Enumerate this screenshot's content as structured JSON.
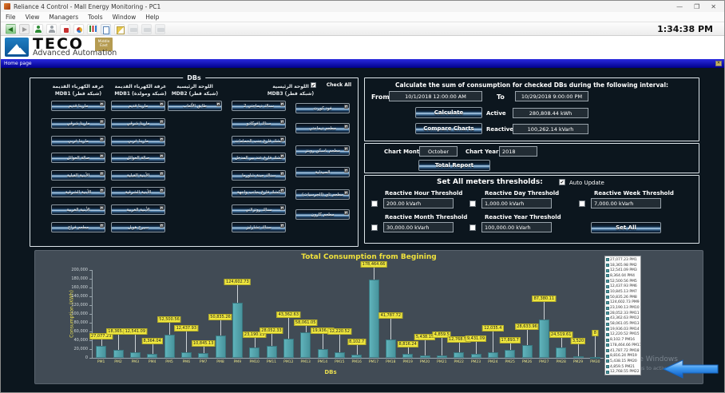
{
  "window": {
    "title": "Reliance 4 Control - Mall Energy Monitoring - PC1",
    "controls": {
      "minimize": "—",
      "maximize": "❐",
      "close": "✕"
    }
  },
  "menu": {
    "items": [
      "File",
      "View",
      "Managers",
      "Tools",
      "Window",
      "Help"
    ]
  },
  "toolbar": {
    "time": "1:34:38 PM",
    "icons": [
      "back",
      "forward",
      "user1",
      "user2",
      "docred",
      "docpie",
      "chart",
      "copy",
      "design",
      "print",
      "print",
      "print"
    ]
  },
  "brand": {
    "name": "TECO",
    "badge": "Middle East",
    "tagline": "Advanced Automation"
  },
  "nav": {
    "tab": "Home page"
  },
  "dbs": {
    "box_label": "DBs",
    "check_all_label": "Check All",
    "check_all_checked": true,
    "columns": [
      {
        "title_line1": "غرفة الكهرباء القديمة",
        "title_line2": "MDB1 (شبكة قطر)",
        "buttons": [
          "مارينا قديم",
          "مارينا شرقي",
          "مارينا غربي",
          "صالة العوائل",
          "الأبنية القبلية",
          "الأبنية الشرقية",
          "الأبنية الغربية",
          "مطعم فراج"
        ]
      },
      {
        "title_line1": "غرفة الكهرباء القديمة",
        "title_line2": "MDB1 (شبكة ومولدة)",
        "buttons": [
          "مارينا قديم",
          "مارينا شرقي",
          "مارينا غربي",
          "صالة العوائل",
          "الأبنية القبلية",
          "الأبنية الشرقية",
          "الأبنية الغربية",
          "سيرج هويل"
        ]
      },
      {
        "title_line1": "اللوحة الرئيسية",
        "title_line2": "MDB2 (شبكة قطر)",
        "buttons": [
          "طابق الألعاب"
        ]
      },
      {
        "title_line1": "اللوحة الرئيسية",
        "title_line2": "MDB3 (شبكة قطر)",
        "buttons_left": [
          "سناك ديماجتي 2",
          "سناك افوكادو",
          "كشك فارغ جنب الحمامات",
          "كشك فارغ عند بير المدخل",
          "سناك جبنة شاورما",
          "كشك فارغ بجانب واجهة",
          "سناك روتزلاني",
          "سناك تشارليز"
        ],
        "buttons_right": [
          "فود كورت",
          "مطعم ديماجتي",
          "مطعم باسكن روبنز",
          "الصيدلية",
          "مطعم تاي (الجرسيات)",
          "مطعم كارون"
        ]
      }
    ]
  },
  "calc": {
    "title": "Calculate the sum of consumption for checked DBs during the following interval:",
    "from_label": "From",
    "from_value": "10/1/2018 12:00:00 AM",
    "to_label": "To",
    "to_value": "10/29/2018 9:00:00 PM",
    "calculate_label": "Calculate",
    "active_label": "Active",
    "active_value": "280,808.44 kWh",
    "compare_label": "Compare Charts",
    "reactive_label": "Reactive",
    "reactive_value": "100,262.14 kVarh"
  },
  "chart_controls": {
    "month_label": "Chart Month:",
    "month_value": "October",
    "year_label": "Chart Year:",
    "year_value": "2018",
    "total_report_label": "Total Report"
  },
  "thresholds": {
    "header": "Set All meters thresholds:",
    "auto_update_label": "Auto Update",
    "auto_update_checked": true,
    "items": [
      {
        "label": "Reactive Hour Threshold",
        "value": "200.00 kVarh",
        "checked": false
      },
      {
        "label": "Reactive Day Threshold",
        "value": "1,000.00 kVarh",
        "checked": false
      },
      {
        "label": "Reactive Week Threshold",
        "value": "7,000.00 kVarh",
        "checked": false
      },
      {
        "label": "Reactive Month Threshold",
        "value": "30,000.00 kVarh",
        "checked": false
      },
      {
        "label": "Reactive Year Threshold",
        "value": "100,000.00 kVarh",
        "checked": false
      }
    ],
    "set_all_label": "Set All"
  },
  "chart_data": {
    "type": "bar",
    "title": "Total Consumption from Begining",
    "xlabel": "DBs",
    "ylabel": "Consumption (KWh)",
    "ylim": [
      0,
      200000
    ],
    "ytick_step": 20000,
    "grid": false,
    "legend_position": "top-right",
    "legend_visible_count": 22,
    "bar_color": "#48949d",
    "label_bg": "#efe73e",
    "categories": [
      "PM1",
      "PM2",
      "PM3",
      "PM4",
      "PM5",
      "PM6",
      "PM7",
      "PM8",
      "PM9",
      "PM10",
      "PM11",
      "PM12",
      "PM13",
      "PM14",
      "PM15",
      "PM16",
      "PM17",
      "PM18",
      "PM19",
      "PM20",
      "PM21",
      "PM22",
      "PM23",
      "PM24",
      "PM25",
      "PM26",
      "PM27",
      "PM28",
      "PM29",
      "PM30"
    ],
    "values": [
      27077.23,
      18365.98,
      12541.09,
      8364.04,
      52500.56,
      12437.93,
      10845.13,
      50835.26,
      124602.73,
      23190.13,
      28052.33,
      43362.63,
      58061.05,
      19936.03,
      12220.52,
      8102.7,
      178464.66,
      41787.72,
      8816.24,
      5438.15,
      4859.5,
      12768.55,
      9431.09,
      12035.4,
      17893.7,
      28633.96,
      87380.11,
      24519.61,
      3520,
      8
    ]
  },
  "watermark": {
    "line1": "Activate Windows",
    "line2": "Go to Settings to activate Windows"
  }
}
